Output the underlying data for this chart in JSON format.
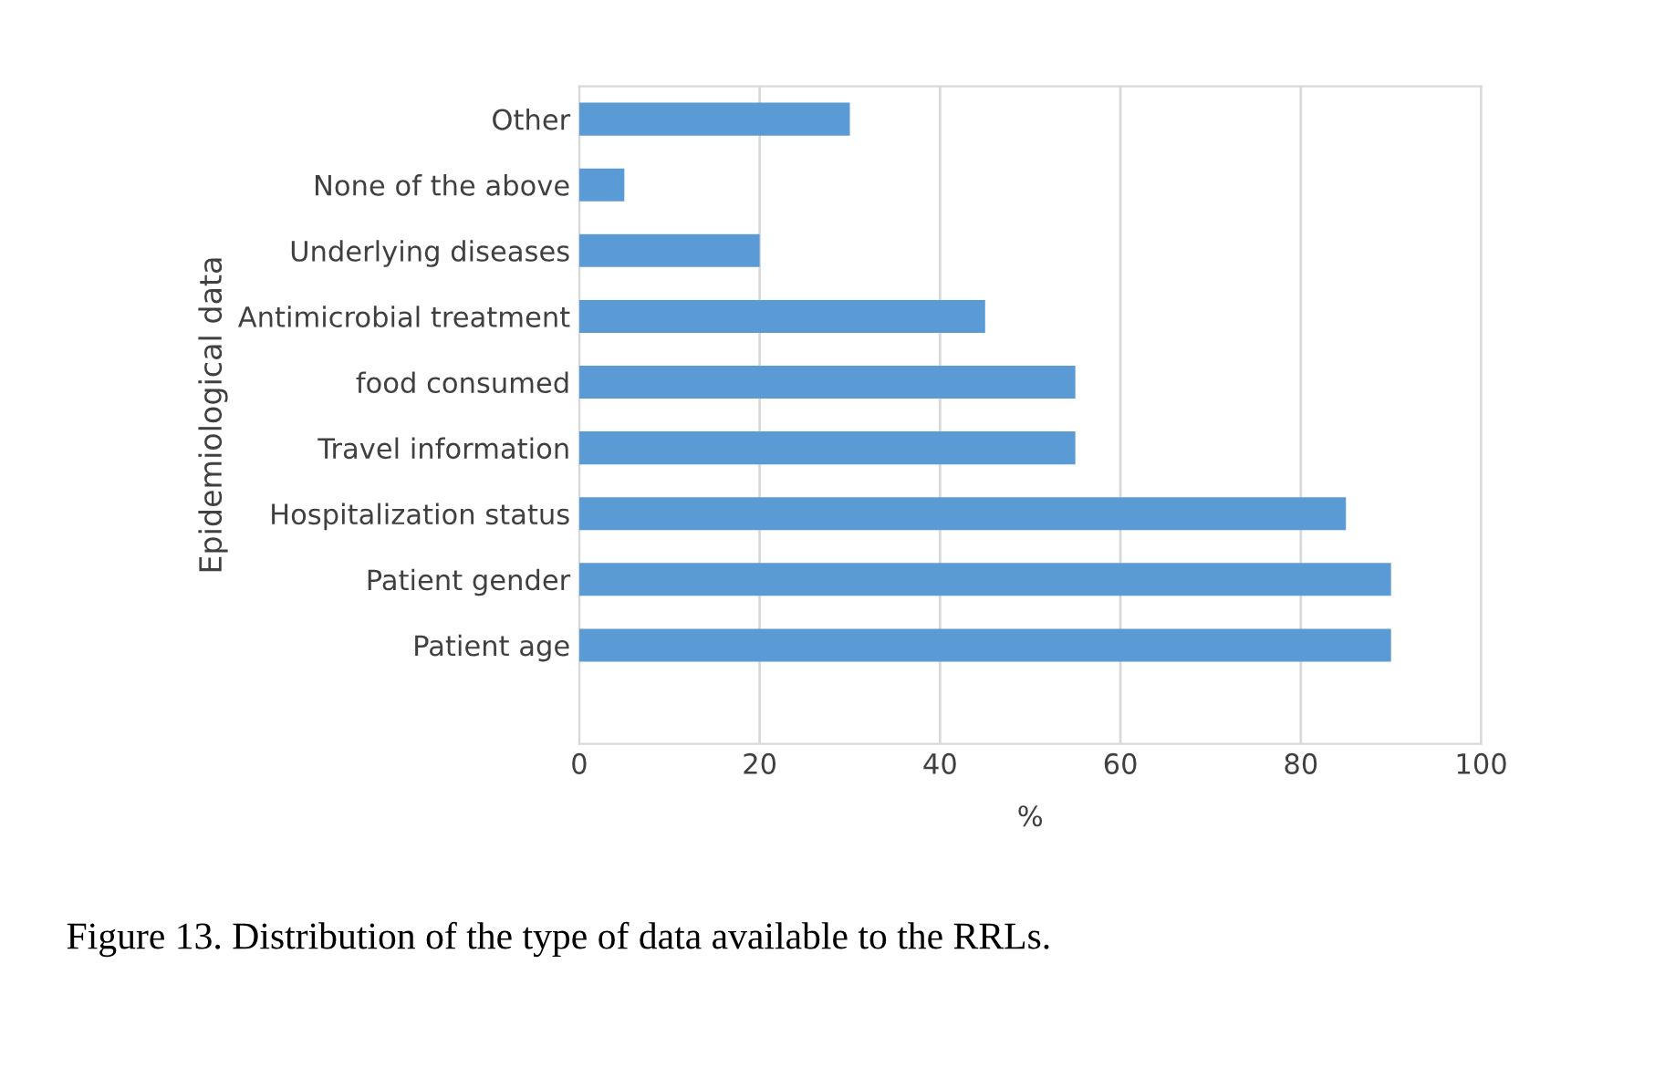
{
  "chart_data": {
    "type": "bar",
    "orientation": "horizontal",
    "categories": [
      "Other",
      "None of the above",
      "Underlying diseases",
      "Antimicrobial treatment",
      "food consumed",
      "Travel information",
      "Hospitalization status",
      "Patient gender",
      "Patient age",
      null
    ],
    "values": [
      30,
      5,
      20,
      45,
      55,
      55,
      85,
      90,
      90,
      null
    ],
    "color": "#5b9bd5",
    "xlim": [
      0,
      100
    ],
    "xticks": [
      0,
      20,
      40,
      60,
      80,
      100
    ],
    "xlabel": "%",
    "ylabel": "Epidemiological data",
    "grid": "x",
    "annotations": [
      "Figure 13. Distribution of the type of data available to the RRLs."
    ]
  }
}
